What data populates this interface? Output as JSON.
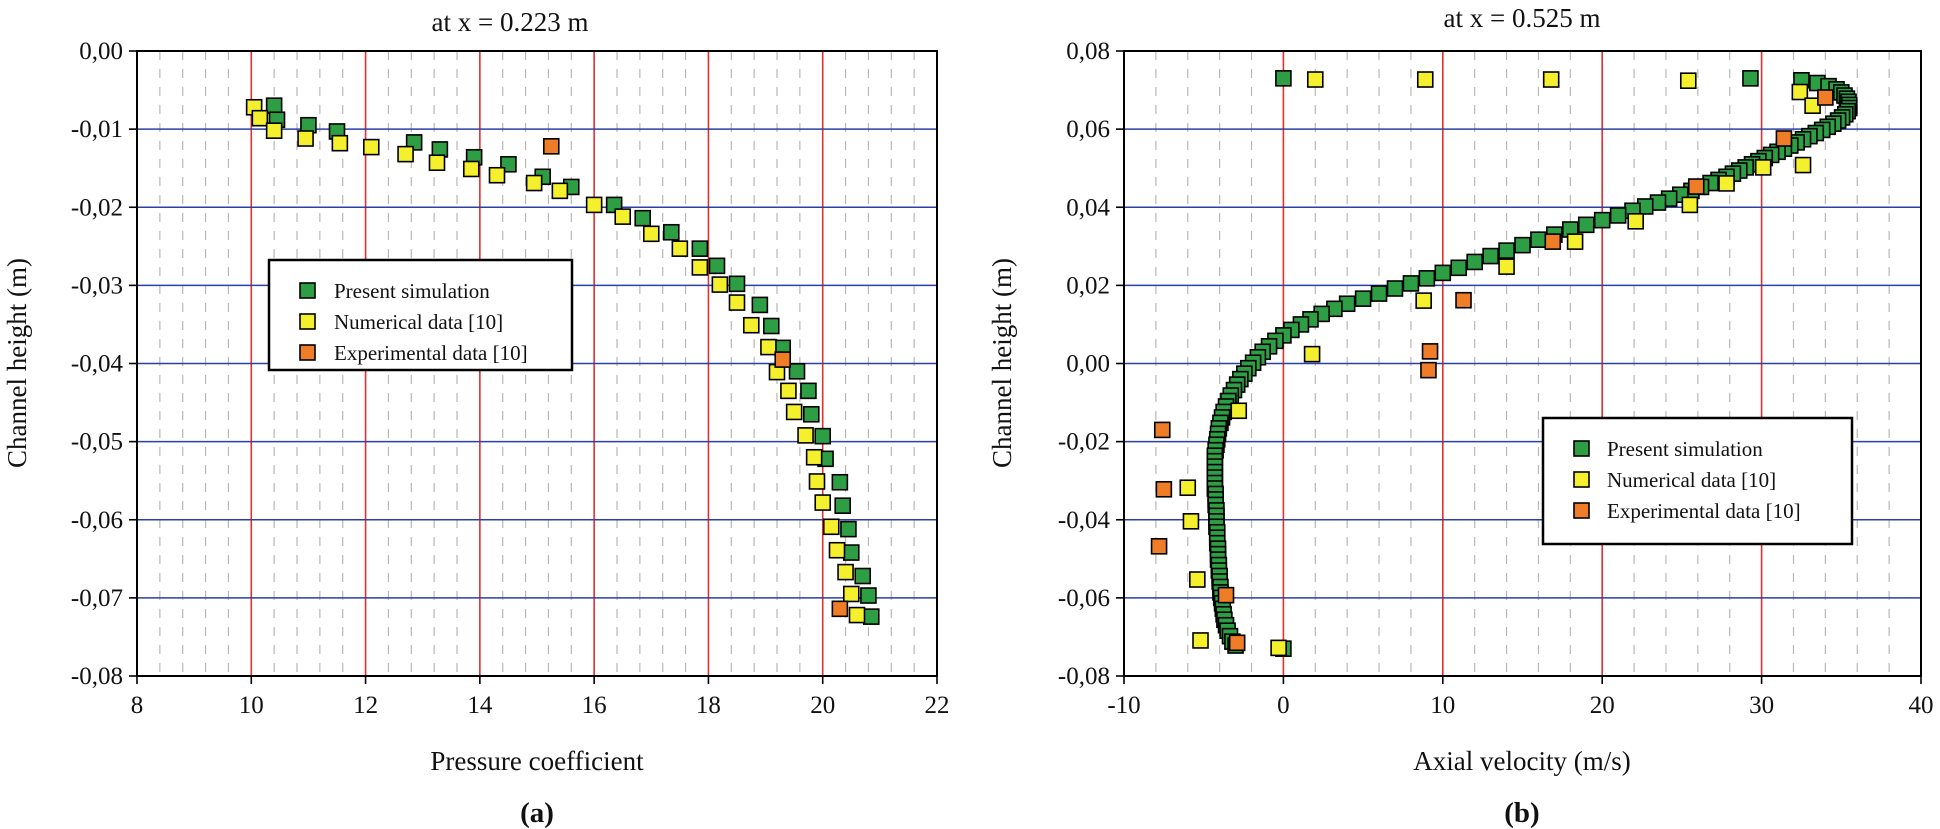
{
  "figure": {
    "panel_a_label": "(a)",
    "panel_b_label": "(b)"
  },
  "colors": {
    "green": "#2e9e44",
    "yellow": "#f4f02e",
    "orange": "#ef7d27",
    "red_grid": "#e03030",
    "blue_grid": "#2b3fa8",
    "dash_grid": "#b8b8b8"
  },
  "chart_data": [
    {
      "type": "scatter",
      "title": "at x = 0.223 m",
      "xlabel": "Pressure coefficient",
      "ylabel": "Channel height (m)",
      "xlim": [
        8,
        22
      ],
      "ylim": [
        -0.08,
        0.0
      ],
      "xticks": [
        8,
        10,
        12,
        14,
        16,
        18,
        20,
        22
      ],
      "yticks": [
        -0.08,
        -0.07,
        -0.06,
        -0.05,
        -0.04,
        -0.03,
        -0.02,
        -0.01,
        0.0
      ],
      "xtick_labels": [
        "8",
        "10",
        "12",
        "14",
        "16",
        "18",
        "20",
        "22"
      ],
      "ytick_labels": [
        "-0,08",
        "-0,07",
        "-0,06",
        "-0,05",
        "-0,04",
        "-0,03",
        "-0,02",
        "-0,01",
        "0,00"
      ],
      "legend": [
        "Present simulation",
        "Numerical data [10]",
        "Experimental data [10]"
      ],
      "legend_position": "center-left",
      "series": [
        {
          "name": "Present simulation",
          "color": "green",
          "points": [
            [
              10.4,
              -0.007
            ],
            [
              10.45,
              -0.0088
            ],
            [
              11.0,
              -0.0095
            ],
            [
              11.5,
              -0.0103
            ],
            [
              12.85,
              -0.0117
            ],
            [
              13.3,
              -0.0126
            ],
            [
              13.9,
              -0.0136
            ],
            [
              14.5,
              -0.0145
            ],
            [
              15.1,
              -0.0161
            ],
            [
              15.6,
              -0.0174
            ],
            [
              16.35,
              -0.0197
            ],
            [
              16.85,
              -0.0214
            ],
            [
              17.35,
              -0.0232
            ],
            [
              17.85,
              -0.0253
            ],
            [
              18.15,
              -0.0275
            ],
            [
              18.5,
              -0.0298
            ],
            [
              18.9,
              -0.0325
            ],
            [
              19.1,
              -0.0352
            ],
            [
              19.3,
              -0.038
            ],
            [
              19.55,
              -0.041
            ],
            [
              19.75,
              -0.0435
            ],
            [
              19.8,
              -0.0465
            ],
            [
              20.0,
              -0.0493
            ],
            [
              20.05,
              -0.0522
            ],
            [
              20.3,
              -0.0552
            ],
            [
              20.35,
              -0.0582
            ],
            [
              20.45,
              -0.0612
            ],
            [
              20.5,
              -0.0642
            ],
            [
              20.7,
              -0.0672
            ],
            [
              20.8,
              -0.0697
            ],
            [
              20.85,
              -0.0724
            ]
          ]
        },
        {
          "name": "Numerical data [10]",
          "color": "yellow",
          "points": [
            [
              10.05,
              -0.0072
            ],
            [
              10.15,
              -0.0086
            ],
            [
              10.4,
              -0.0102
            ],
            [
              10.95,
              -0.0112
            ],
            [
              11.55,
              -0.0118
            ],
            [
              12.1,
              -0.0123
            ],
            [
              12.7,
              -0.0132
            ],
            [
              13.25,
              -0.0143
            ],
            [
              13.85,
              -0.0151
            ],
            [
              14.3,
              -0.0159
            ],
            [
              14.95,
              -0.0169
            ],
            [
              15.4,
              -0.0179
            ],
            [
              16.0,
              -0.0197
            ],
            [
              16.5,
              -0.0212
            ],
            [
              17.0,
              -0.0234
            ],
            [
              17.5,
              -0.0253
            ],
            [
              17.85,
              -0.0277
            ],
            [
              18.2,
              -0.0299
            ],
            [
              18.5,
              -0.0322
            ],
            [
              18.75,
              -0.0351
            ],
            [
              19.05,
              -0.0379
            ],
            [
              19.2,
              -0.0411
            ],
            [
              19.4,
              -0.0435
            ],
            [
              19.5,
              -0.0462
            ],
            [
              19.7,
              -0.0492
            ],
            [
              19.85,
              -0.052
            ],
            [
              19.9,
              -0.0551
            ],
            [
              20.0,
              -0.0578
            ],
            [
              20.15,
              -0.0609
            ],
            [
              20.25,
              -0.0639
            ],
            [
              20.4,
              -0.0667
            ],
            [
              20.5,
              -0.0695
            ],
            [
              20.6,
              -0.0722
            ]
          ]
        },
        {
          "name": "Experimental data [10]",
          "color": "orange",
          "points": [
            [
              15.25,
              -0.0122
            ],
            [
              19.3,
              -0.0395
            ],
            [
              20.3,
              -0.0714
            ]
          ]
        }
      ]
    },
    {
      "type": "scatter",
      "title": "at x = 0.525 m",
      "xlabel": "Axial velocity (m/s)",
      "ylabel": "Channel height (m)",
      "xlim": [
        -10,
        40
      ],
      "ylim": [
        -0.08,
        0.08
      ],
      "xticks": [
        -10,
        0,
        10,
        20,
        30,
        40
      ],
      "yticks": [
        -0.08,
        -0.06,
        -0.04,
        -0.02,
        0.0,
        0.02,
        0.04,
        0.06,
        0.08
      ],
      "xtick_labels": [
        "-10",
        "0",
        "10",
        "20",
        "30",
        "40"
      ],
      "ytick_labels": [
        "-0,08",
        "-0,06",
        "-0,04",
        "-0,02",
        "0,00",
        "0,02",
        "0,04",
        "0,06",
        "0,08"
      ],
      "legend": [
        "Present simulation",
        "Numerical data [10]",
        "Experimental data [10]"
      ],
      "legend_position": "bottom-right",
      "series": [
        {
          "name": "Present simulation",
          "color": "green",
          "points": [
            [
              0.0,
              0.073
            ],
            [
              29.3,
              0.073
            ],
            [
              32.5,
              0.0725
            ],
            [
              33.5,
              0.0718
            ],
            [
              34.2,
              0.071
            ],
            [
              34.7,
              0.0702
            ],
            [
              35.0,
              0.0694
            ],
            [
              35.2,
              0.0686
            ],
            [
              35.35,
              0.0678
            ],
            [
              35.45,
              0.067
            ],
            [
              35.5,
              0.0662
            ],
            [
              35.5,
              0.0654
            ],
            [
              35.4,
              0.0646
            ],
            [
              35.25,
              0.0638
            ],
            [
              35.05,
              0.063
            ],
            [
              34.8,
              0.0622
            ],
            [
              34.5,
              0.0614
            ],
            [
              34.15,
              0.0606
            ],
            [
              33.8,
              0.0598
            ],
            [
              33.4,
              0.059
            ],
            [
              33.0,
              0.0582
            ],
            [
              32.6,
              0.0574
            ],
            [
              32.2,
              0.0566
            ],
            [
              31.8,
              0.0558
            ],
            [
              31.4,
              0.055
            ],
            [
              31.0,
              0.0542
            ],
            [
              30.6,
              0.0534
            ],
            [
              30.2,
              0.0526
            ],
            [
              29.8,
              0.0518
            ],
            [
              29.4,
              0.051
            ],
            [
              29.0,
              0.0502
            ],
            [
              28.6,
              0.0494
            ],
            [
              28.2,
              0.0486
            ],
            [
              27.8,
              0.0478
            ],
            [
              27.3,
              0.047
            ],
            [
              26.8,
              0.0462
            ],
            [
              26.2,
              0.0452
            ],
            [
              25.6,
              0.0442
            ],
            [
              24.9,
              0.0432
            ],
            [
              24.2,
              0.0422
            ],
            [
              23.5,
              0.0412
            ],
            [
              22.7,
              0.0402
            ],
            [
              21.9,
              0.0391
            ],
            [
              21.0,
              0.0379
            ],
            [
              20.0,
              0.0367
            ],
            [
              19.0,
              0.0355
            ],
            [
              18.0,
              0.0343
            ],
            [
              17.0,
              0.033
            ],
            [
              16.0,
              0.0317
            ],
            [
              15.0,
              0.0303
            ],
            [
              14.0,
              0.0289
            ],
            [
              13.0,
              0.0275
            ],
            [
              12.0,
              0.026
            ],
            [
              11.0,
              0.0245
            ],
            [
              10.0,
              0.0232
            ],
            [
              9.0,
              0.0218
            ],
            [
              8.0,
              0.0205
            ],
            [
              7.0,
              0.0192
            ],
            [
              6.0,
              0.0179
            ],
            [
              5.0,
              0.0166
            ],
            [
              4.0,
              0.0153
            ],
            [
              3.2,
              0.014
            ],
            [
              2.4,
              0.0127
            ],
            [
              1.7,
              0.0113
            ],
            [
              1.1,
              0.01
            ],
            [
              0.5,
              0.0086
            ],
            [
              0.0,
              0.0072
            ],
            [
              -0.5,
              0.0058
            ],
            [
              -0.9,
              0.0044
            ],
            [
              -1.3,
              0.003
            ],
            [
              -1.6,
              0.0016
            ],
            [
              -1.9,
              0.0002
            ],
            [
              -2.2,
              -0.0012
            ],
            [
              -2.45,
              -0.0026
            ],
            [
              -2.7,
              -0.004
            ],
            [
              -2.9,
              -0.0054
            ],
            [
              -3.1,
              -0.0068
            ],
            [
              -3.3,
              -0.0082
            ],
            [
              -3.45,
              -0.0096
            ],
            [
              -3.6,
              -0.011
            ],
            [
              -3.75,
              -0.0124
            ],
            [
              -3.85,
              -0.0138
            ],
            [
              -3.95,
              -0.0152
            ],
            [
              -4.05,
              -0.0166
            ],
            [
              -4.1,
              -0.018
            ],
            [
              -4.15,
              -0.0194
            ],
            [
              -4.2,
              -0.0208
            ],
            [
              -4.25,
              -0.0222
            ],
            [
              -4.3,
              -0.0236
            ],
            [
              -4.3,
              -0.025
            ],
            [
              -4.3,
              -0.0264
            ],
            [
              -4.3,
              -0.0278
            ],
            [
              -4.3,
              -0.0292
            ],
            [
              -4.3,
              -0.0306
            ],
            [
              -4.3,
              -0.032
            ],
            [
              -4.25,
              -0.0334
            ],
            [
              -4.25,
              -0.0348
            ],
            [
              -4.25,
              -0.0362
            ],
            [
              -4.2,
              -0.0376
            ],
            [
              -4.2,
              -0.039
            ],
            [
              -4.2,
              -0.0404
            ],
            [
              -4.2,
              -0.0418
            ],
            [
              -4.15,
              -0.0432
            ],
            [
              -4.15,
              -0.0446
            ],
            [
              -4.15,
              -0.046
            ],
            [
              -4.1,
              -0.0474
            ],
            [
              -4.1,
              -0.0488
            ],
            [
              -4.1,
              -0.0502
            ],
            [
              -4.05,
              -0.0516
            ],
            [
              -4.05,
              -0.053
            ],
            [
              -4.0,
              -0.0544
            ],
            [
              -4.0,
              -0.0558
            ],
            [
              -3.95,
              -0.0572
            ],
            [
              -3.95,
              -0.0586
            ],
            [
              -3.9,
              -0.06
            ],
            [
              -3.85,
              -0.0614
            ],
            [
              -3.8,
              -0.0628
            ],
            [
              -3.75,
              -0.0642
            ],
            [
              -3.7,
              -0.0656
            ],
            [
              -3.6,
              -0.067
            ],
            [
              -3.5,
              -0.0684
            ],
            [
              -3.35,
              -0.0698
            ],
            [
              -3.2,
              -0.0712
            ],
            [
              -3.0,
              -0.0722
            ],
            [
              0.0,
              -0.073
            ]
          ]
        },
        {
          "name": "Numerical data [10]",
          "color": "yellow",
          "points": [
            [
              2.0,
              0.0727
            ],
            [
              8.9,
              0.0727
            ],
            [
              16.8,
              0.0727
            ],
            [
              25.4,
              0.0724
            ],
            [
              32.4,
              0.0695
            ],
            [
              33.2,
              0.066
            ],
            [
              30.1,
              0.0502
            ],
            [
              32.6,
              0.0508
            ],
            [
              27.8,
              0.0461
            ],
            [
              25.5,
              0.0406
            ],
            [
              22.1,
              0.0364
            ],
            [
              18.3,
              0.0312
            ],
            [
              14.0,
              0.0248
            ],
            [
              8.8,
              0.0161
            ],
            [
              1.8,
              0.0024
            ],
            [
              -2.8,
              -0.0121
            ],
            [
              -6.0,
              -0.0318
            ],
            [
              -5.8,
              -0.0404
            ],
            [
              -5.4,
              -0.0553
            ],
            [
              -5.2,
              -0.0709
            ],
            [
              -0.3,
              -0.0728
            ]
          ]
        },
        {
          "name": "Experimental data [10]",
          "color": "orange",
          "points": [
            [
              34.0,
              0.0681
            ],
            [
              31.4,
              0.0576
            ],
            [
              25.9,
              0.0453
            ],
            [
              16.9,
              0.0312
            ],
            [
              11.3,
              0.0162
            ],
            [
              9.2,
              0.0031
            ],
            [
              9.1,
              -0.0017
            ],
            [
              -7.6,
              -0.017
            ],
            [
              -7.5,
              -0.0322
            ],
            [
              -7.8,
              -0.0468
            ],
            [
              -3.6,
              -0.0593
            ],
            [
              -2.9,
              -0.0715
            ]
          ]
        }
      ]
    }
  ]
}
